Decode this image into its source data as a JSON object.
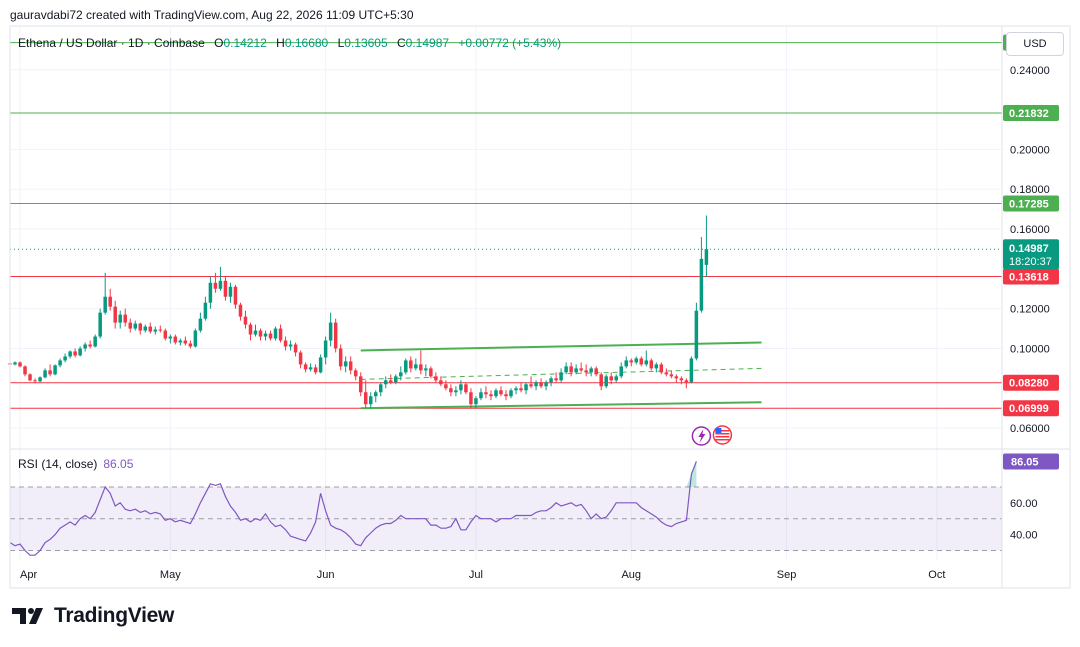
{
  "header": {
    "attribution": "gauravdabi72 created with TradingView.com, Aug 22, 2026 11:09 UTC+5:30"
  },
  "ticker": {
    "symbol": "Ethena / US Dollar · 1D · Coinbase",
    "open_label": "O",
    "open": "0.14212",
    "high_label": "H",
    "high": "0.16680",
    "low_label": "L",
    "low": "0.13605",
    "close_label": "C",
    "close": "0.14987",
    "change": "+0.00772 (+5.43%)"
  },
  "currency_button": "USD",
  "colors": {
    "up": "#089981",
    "down": "#f23645",
    "green_level": "#4caf50",
    "red_level": "#f23645",
    "rsi": "#7e57c2",
    "channel": "#4caf50"
  },
  "chart_data": {
    "type": "candlestick",
    "y_axis": {
      "range": [
        0.05,
        0.262
      ],
      "ticks": [
        "0.24000",
        "0.20000",
        "0.18000",
        "0.16000",
        "0.12000",
        "0.10000",
        "0.06000"
      ]
    },
    "x_axis": {
      "labels": [
        {
          "label": "Apr",
          "day": 0
        },
        {
          "label": "May",
          "day": 30
        },
        {
          "label": "Jun",
          "day": 61
        },
        {
          "label": "Jul",
          "day": 91
        },
        {
          "label": "Aug",
          "day": 122
        },
        {
          "label": "Sep",
          "day": 153
        },
        {
          "label": "Oct",
          "day": 183
        }
      ],
      "range_days": [
        -2,
        196
      ]
    },
    "horizontal_levels": [
      {
        "value": 0.25367,
        "label": "0.25367",
        "color": "green"
      },
      {
        "value": 0.21832,
        "label": "0.21832",
        "color": "green"
      },
      {
        "value": 0.17285,
        "label": "0.17285",
        "color": "green"
      },
      {
        "value": 0.13618,
        "label": "0.13618",
        "color": "red"
      },
      {
        "value": 0.0828,
        "label": "0.08280",
        "color": "red"
      },
      {
        "value": 0.06999,
        "label": "0.06999",
        "color": "red"
      }
    ],
    "last_price": {
      "value": 0.14987,
      "label": "0.14987",
      "countdown": "18:20:37"
    },
    "channel": {
      "upper": [
        [
          68,
          0.099
        ],
        [
          148,
          0.103
        ]
      ],
      "lower": [
        [
          68,
          0.07
        ],
        [
          148,
          0.073
        ]
      ],
      "mid": [
        [
          68,
          0.0845
        ],
        [
          148,
          0.09
        ]
      ]
    },
    "candles": [
      [
        -2,
        0.0925,
        0.0935,
        0.091,
        0.092
      ],
      [
        -1,
        0.092,
        0.0935,
        0.0915,
        0.093
      ],
      [
        0,
        0.093,
        0.0935,
        0.0905,
        0.091
      ],
      [
        1,
        0.091,
        0.0915,
        0.086,
        0.087
      ],
      [
        2,
        0.087,
        0.0875,
        0.0835,
        0.084
      ],
      [
        3,
        0.084,
        0.085,
        0.0825,
        0.0835
      ],
      [
        4,
        0.0835,
        0.086,
        0.083,
        0.0855
      ],
      [
        5,
        0.0855,
        0.09,
        0.085,
        0.089
      ],
      [
        6,
        0.089,
        0.092,
        0.086,
        0.087
      ],
      [
        7,
        0.087,
        0.092,
        0.0865,
        0.0915
      ],
      [
        8,
        0.0915,
        0.095,
        0.0905,
        0.094
      ],
      [
        9,
        0.094,
        0.0975,
        0.093,
        0.096
      ],
      [
        10,
        0.096,
        0.099,
        0.095,
        0.0985
      ],
      [
        11,
        0.0985,
        0.1,
        0.0955,
        0.0965
      ],
      [
        12,
        0.0965,
        0.101,
        0.096,
        0.1
      ],
      [
        13,
        0.1,
        0.103,
        0.0985,
        0.102
      ],
      [
        14,
        0.102,
        0.104,
        0.1,
        0.101
      ],
      [
        15,
        0.101,
        0.107,
        0.1005,
        0.106
      ],
      [
        16,
        0.106,
        0.12,
        0.105,
        0.118
      ],
      [
        17,
        0.118,
        0.138,
        0.117,
        0.126
      ],
      [
        18,
        0.126,
        0.13,
        0.119,
        0.121
      ],
      [
        19,
        0.121,
        0.124,
        0.11,
        0.113
      ],
      [
        20,
        0.113,
        0.119,
        0.11,
        0.117
      ],
      [
        21,
        0.117,
        0.12,
        0.111,
        0.113
      ],
      [
        22,
        0.113,
        0.115,
        0.108,
        0.11
      ],
      [
        23,
        0.11,
        0.114,
        0.109,
        0.1125
      ],
      [
        24,
        0.1125,
        0.113,
        0.107,
        0.109
      ],
      [
        25,
        0.109,
        0.112,
        0.108,
        0.111
      ],
      [
        26,
        0.111,
        0.113,
        0.1075,
        0.1085
      ],
      [
        27,
        0.1085,
        0.111,
        0.107,
        0.1095
      ],
      [
        28,
        0.1095,
        0.1115,
        0.108,
        0.109
      ],
      [
        29,
        0.109,
        0.11,
        0.104,
        0.105
      ],
      [
        30,
        0.105,
        0.107,
        0.1025,
        0.106
      ],
      [
        31,
        0.106,
        0.107,
        0.102,
        0.103
      ],
      [
        32,
        0.103,
        0.105,
        0.1015,
        0.104
      ],
      [
        33,
        0.104,
        0.106,
        0.1015,
        0.1025
      ],
      [
        34,
        0.1025,
        0.104,
        0.1,
        0.101
      ],
      [
        35,
        0.101,
        0.11,
        0.1005,
        0.109
      ],
      [
        36,
        0.109,
        0.118,
        0.108,
        0.115
      ],
      [
        37,
        0.115,
        0.126,
        0.114,
        0.123
      ],
      [
        38,
        0.123,
        0.136,
        0.12,
        0.133
      ],
      [
        39,
        0.133,
        0.138,
        0.128,
        0.13
      ],
      [
        40,
        0.13,
        0.141,
        0.129,
        0.134
      ],
      [
        41,
        0.134,
        0.136,
        0.124,
        0.126
      ],
      [
        42,
        0.126,
        0.133,
        0.123,
        0.131
      ],
      [
        43,
        0.131,
        0.132,
        0.12,
        0.122
      ],
      [
        44,
        0.122,
        0.123,
        0.114,
        0.116
      ],
      [
        45,
        0.116,
        0.119,
        0.11,
        0.112
      ],
      [
        46,
        0.112,
        0.113,
        0.104,
        0.107
      ],
      [
        47,
        0.107,
        0.112,
        0.106,
        0.109
      ],
      [
        48,
        0.109,
        0.11,
        0.104,
        0.106
      ],
      [
        49,
        0.106,
        0.109,
        0.104,
        0.1075
      ],
      [
        50,
        0.1075,
        0.109,
        0.104,
        0.105
      ],
      [
        51,
        0.105,
        0.111,
        0.104,
        0.11
      ],
      [
        52,
        0.11,
        0.112,
        0.103,
        0.104
      ],
      [
        53,
        0.104,
        0.106,
        0.099,
        0.101
      ],
      [
        54,
        0.101,
        0.104,
        0.099,
        0.102
      ],
      [
        55,
        0.102,
        0.103,
        0.096,
        0.098
      ],
      [
        56,
        0.098,
        0.099,
        0.09,
        0.092
      ],
      [
        57,
        0.092,
        0.093,
        0.088,
        0.0895
      ],
      [
        58,
        0.0895,
        0.0925,
        0.0885,
        0.0905
      ],
      [
        59,
        0.0905,
        0.092,
        0.087,
        0.088
      ],
      [
        60,
        0.088,
        0.097,
        0.0875,
        0.0955
      ],
      [
        61,
        0.0955,
        0.106,
        0.092,
        0.104
      ],
      [
        62,
        0.104,
        0.118,
        0.101,
        0.113
      ],
      [
        63,
        0.113,
        0.115,
        0.098,
        0.1
      ],
      [
        64,
        0.1,
        0.102,
        0.089,
        0.091
      ],
      [
        65,
        0.091,
        0.096,
        0.088,
        0.0935
      ],
      [
        66,
        0.0935,
        0.096,
        0.087,
        0.089
      ],
      [
        67,
        0.089,
        0.09,
        0.084,
        0.086
      ],
      [
        68,
        0.086,
        0.088,
        0.076,
        0.078
      ],
      [
        69,
        0.078,
        0.084,
        0.07,
        0.072
      ],
      [
        70,
        0.072,
        0.078,
        0.07,
        0.076
      ],
      [
        71,
        0.076,
        0.079,
        0.073,
        0.078
      ],
      [
        72,
        0.078,
        0.083,
        0.076,
        0.082
      ],
      [
        73,
        0.082,
        0.086,
        0.08,
        0.084
      ],
      [
        74,
        0.084,
        0.087,
        0.082,
        0.083
      ],
      [
        75,
        0.083,
        0.087,
        0.082,
        0.086
      ],
      [
        76,
        0.086,
        0.091,
        0.084,
        0.088
      ],
      [
        77,
        0.088,
        0.095,
        0.087,
        0.094
      ],
      [
        78,
        0.094,
        0.096,
        0.088,
        0.09
      ],
      [
        79,
        0.09,
        0.095,
        0.089,
        0.092
      ],
      [
        80,
        0.092,
        0.099,
        0.087,
        0.089
      ],
      [
        81,
        0.089,
        0.092,
        0.086,
        0.09
      ],
      [
        82,
        0.09,
        0.091,
        0.085,
        0.086
      ],
      [
        83,
        0.086,
        0.088,
        0.083,
        0.084
      ],
      [
        84,
        0.084,
        0.086,
        0.081,
        0.082
      ],
      [
        85,
        0.082,
        0.084,
        0.079,
        0.08
      ],
      [
        86,
        0.08,
        0.082,
        0.076,
        0.078
      ],
      [
        87,
        0.078,
        0.081,
        0.076,
        0.079
      ],
      [
        88,
        0.079,
        0.084,
        0.077,
        0.082
      ],
      [
        89,
        0.082,
        0.083,
        0.077,
        0.078
      ],
      [
        90,
        0.078,
        0.08,
        0.07,
        0.072
      ],
      [
        91,
        0.072,
        0.076,
        0.07,
        0.075
      ],
      [
        92,
        0.075,
        0.08,
        0.074,
        0.078
      ],
      [
        93,
        0.078,
        0.081,
        0.075,
        0.077
      ],
      [
        94,
        0.077,
        0.079,
        0.074,
        0.076
      ],
      [
        95,
        0.076,
        0.08,
        0.075,
        0.079
      ],
      [
        96,
        0.079,
        0.081,
        0.076,
        0.077
      ],
      [
        97,
        0.077,
        0.079,
        0.074,
        0.076
      ],
      [
        98,
        0.076,
        0.08,
        0.075,
        0.079
      ],
      [
        99,
        0.079,
        0.081,
        0.077,
        0.08
      ],
      [
        100,
        0.08,
        0.083,
        0.078,
        0.079
      ],
      [
        101,
        0.079,
        0.083,
        0.077,
        0.082
      ],
      [
        102,
        0.082,
        0.086,
        0.08,
        0.081
      ],
      [
        103,
        0.081,
        0.084,
        0.079,
        0.083
      ],
      [
        104,
        0.083,
        0.085,
        0.08,
        0.081
      ],
      [
        105,
        0.081,
        0.084,
        0.079,
        0.083
      ],
      [
        106,
        0.083,
        0.086,
        0.081,
        0.085
      ],
      [
        107,
        0.085,
        0.088,
        0.083,
        0.084
      ],
      [
        108,
        0.084,
        0.09,
        0.083,
        0.088
      ],
      [
        109,
        0.088,
        0.093,
        0.087,
        0.091
      ],
      [
        110,
        0.091,
        0.093,
        0.086,
        0.088
      ],
      [
        111,
        0.088,
        0.092,
        0.087,
        0.09
      ],
      [
        112,
        0.09,
        0.093,
        0.088,
        0.089
      ],
      [
        113,
        0.089,
        0.092,
        0.086,
        0.088
      ],
      [
        114,
        0.088,
        0.091,
        0.086,
        0.09
      ],
      [
        115,
        0.09,
        0.091,
        0.086,
        0.087
      ],
      [
        116,
        0.087,
        0.088,
        0.079,
        0.081
      ],
      [
        117,
        0.081,
        0.087,
        0.08,
        0.086
      ],
      [
        118,
        0.086,
        0.088,
        0.082,
        0.084
      ],
      [
        119,
        0.084,
        0.087,
        0.083,
        0.086
      ],
      [
        120,
        0.086,
        0.093,
        0.085,
        0.091
      ],
      [
        121,
        0.091,
        0.096,
        0.09,
        0.094
      ],
      [
        122,
        0.094,
        0.095,
        0.091,
        0.093
      ],
      [
        123,
        0.093,
        0.096,
        0.092,
        0.095
      ],
      [
        124,
        0.095,
        0.096,
        0.091,
        0.092
      ],
      [
        125,
        0.092,
        0.099,
        0.091,
        0.094
      ],
      [
        126,
        0.094,
        0.095,
        0.089,
        0.09
      ],
      [
        127,
        0.09,
        0.093,
        0.088,
        0.092
      ],
      [
        128,
        0.092,
        0.093,
        0.087,
        0.088
      ],
      [
        129,
        0.088,
        0.09,
        0.086,
        0.087
      ],
      [
        130,
        0.087,
        0.089,
        0.085,
        0.086
      ],
      [
        131,
        0.086,
        0.087,
        0.083,
        0.085
      ],
      [
        132,
        0.085,
        0.086,
        0.082,
        0.084
      ],
      [
        133,
        0.084,
        0.085,
        0.08,
        0.083
      ],
      [
        134,
        0.083,
        0.096,
        0.0825,
        0.095
      ],
      [
        135,
        0.095,
        0.123,
        0.094,
        0.119
      ],
      [
        136,
        0.119,
        0.156,
        0.118,
        0.145
      ],
      [
        137,
        0.142,
        0.1668,
        0.136,
        0.1499
      ]
    ],
    "rsi": {
      "label": "RSI (14, close)",
      "value_label": "86.05",
      "value": 86.05,
      "bands": [
        30,
        50,
        70
      ],
      "range": [
        24,
        92
      ],
      "ticks": [
        "60.00",
        "40.00"
      ],
      "values": [
        35,
        33,
        34,
        30,
        27,
        27,
        30,
        35,
        37,
        40,
        44,
        46,
        48,
        46,
        50,
        52,
        50,
        54,
        62,
        70,
        66,
        58,
        60,
        56,
        55,
        56,
        54,
        55,
        53,
        54,
        53,
        49,
        50,
        48,
        49,
        48,
        47,
        53,
        60,
        66,
        72,
        71,
        72,
        64,
        58,
        54,
        49,
        50,
        48,
        50,
        49,
        53,
        48,
        45,
        46,
        43,
        39,
        38,
        37,
        36,
        41,
        48,
        66,
        55,
        46,
        44,
        43,
        41,
        38,
        34,
        33,
        38,
        41,
        44,
        46,
        47,
        47,
        49,
        52,
        50,
        50,
        50,
        50,
        50,
        46,
        46,
        44,
        44,
        45,
        50,
        43,
        43,
        48,
        52,
        50,
        50,
        50,
        48,
        50,
        50,
        50,
        52,
        52,
        52,
        52,
        54,
        55,
        55,
        57,
        60,
        58,
        59,
        60,
        58,
        59,
        55,
        50,
        53,
        50,
        51,
        55,
        60,
        60,
        60,
        60,
        60,
        57,
        55,
        53,
        51,
        48,
        46,
        45,
        47,
        48,
        49,
        78,
        86.05
      ]
    }
  },
  "logo": {
    "text": "TradingView"
  }
}
